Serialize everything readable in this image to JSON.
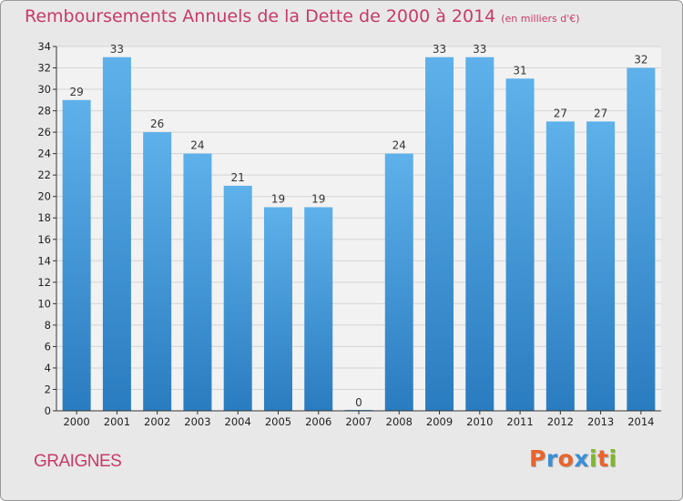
{
  "header": {
    "title": "Remboursements Annuels de la Dette de 2000 à 2014",
    "unit": "(en milliers d'€)"
  },
  "footer": {
    "place": "GRAIGNES",
    "brand": "Proxiti",
    "brand_letters": [
      {
        "ch": "P",
        "color": "#e8642c"
      },
      {
        "ch": "r",
        "color": "#3a8fd6"
      },
      {
        "ch": "o",
        "color": "#e8642c"
      },
      {
        "ch": "x",
        "color": "#3a8fd6"
      },
      {
        "ch": "i",
        "color": "#7cb829"
      },
      {
        "ch": "t",
        "color": "#e8642c"
      },
      {
        "ch": "i",
        "color": "#7cb829"
      }
    ]
  },
  "chart_data": {
    "type": "bar",
    "title": "Remboursements Annuels de la Dette de 2000 à 2014",
    "subtitle": "(en milliers d'€)",
    "categories": [
      "2000",
      "2001",
      "2002",
      "2003",
      "2004",
      "2005",
      "2006",
      "2007",
      "2008",
      "2009",
      "2010",
      "2011",
      "2012",
      "2013",
      "2014"
    ],
    "values": [
      29,
      33,
      26,
      24,
      21,
      19,
      19,
      0,
      24,
      33,
      33,
      31,
      27,
      27,
      32
    ],
    "xlabel": "",
    "ylabel": "",
    "ylim": [
      0,
      34
    ],
    "yticks": [
      0,
      2,
      4,
      6,
      8,
      10,
      12,
      14,
      16,
      18,
      20,
      22,
      24,
      26,
      28,
      30,
      32,
      34
    ],
    "grid": true,
    "colors": {
      "bar_top": "#5eb1ea",
      "bar_bottom": "#2a7cc0",
      "plot_bg": "#f2f2f2",
      "grid": "#d4d4d4",
      "axis": "#333333"
    }
  }
}
